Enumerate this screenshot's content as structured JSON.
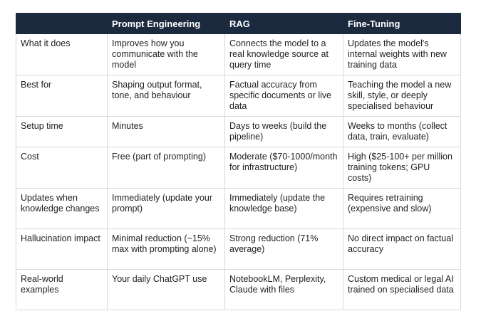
{
  "header": {
    "col0": "",
    "col1": "Prompt Engineering",
    "col2": "RAG",
    "col3": "Fine-Tuning"
  },
  "rows": [
    {
      "label": "What it does",
      "prompt": "Improves how you communicate with the model",
      "rag": "Connects the model to a real knowledge source at query time",
      "finetune": "Updates the model's internal weights with new training data"
    },
    {
      "label": "Best for",
      "prompt": "Shaping output format, tone, and behaviour",
      "rag": "Factual accuracy from specific documents or live data",
      "finetune": "Teaching the model a new skill, style, or deeply specialised behaviour"
    },
    {
      "label": "Setup time",
      "prompt": "Minutes",
      "rag": "Days to weeks (build the pipeline)",
      "finetune": "Weeks to months (collect data, train, evaluate)"
    },
    {
      "label": "Cost",
      "prompt": "Free (part of prompting)",
      "rag": "Moderate ($70-1000/month for infrastructure)",
      "finetune": "High ($25-100+ per million training tokens; GPU costs)"
    },
    {
      "label": "Updates when knowledge changes",
      "prompt": "Immediately (update your prompt)",
      "rag": "Immediately (update the knowledge base)",
      "finetune": "Requires retraining (expensive and slow)"
    },
    {
      "label": "Hallucination impact",
      "prompt": "Minimal reduction (~15% max with prompting alone)",
      "rag": "Strong reduction (71% average)",
      "finetune": "No direct impact on factual accuracy"
    },
    {
      "label": "Real-world examples",
      "prompt": "Your daily ChatGPT use",
      "rag": "NotebookLM, Perplexity, Claude with files",
      "finetune": "Custom medical or legal AI trained on specialised data"
    }
  ]
}
